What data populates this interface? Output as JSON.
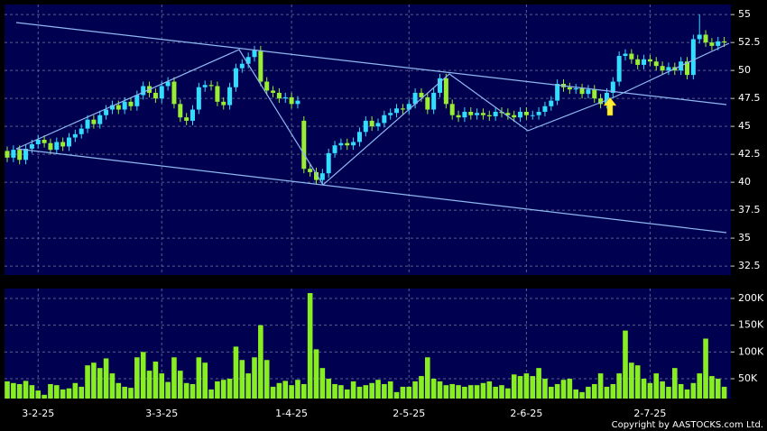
{
  "chart_data": [
    {
      "type": "candlestick",
      "categories": [
        null,
        null,
        null,
        null,
        null,
        "3-2-25",
        null,
        null,
        null,
        null,
        null,
        null,
        null,
        null,
        null,
        null,
        null,
        null,
        null,
        null,
        null,
        null,
        null,
        null,
        null,
        "3-3-25",
        null,
        null,
        null,
        null,
        null,
        null,
        null,
        null,
        null,
        null,
        null,
        null,
        null,
        null,
        null,
        null,
        null,
        null,
        null,
        null,
        "1-4-25",
        null,
        null,
        null,
        null,
        null,
        null,
        null,
        null,
        null,
        null,
        null,
        null,
        null,
        null,
        null,
        null,
        null,
        null,
        "2-5-25",
        null,
        null,
        null,
        null,
        null,
        null,
        null,
        null,
        null,
        null,
        null,
        null,
        null,
        null,
        null,
        null,
        null,
        null,
        "2-6-25",
        null,
        null,
        null,
        null,
        null,
        null,
        null,
        null,
        null,
        null,
        null,
        null,
        null,
        null,
        null,
        null,
        null,
        null,
        null,
        "2-7-25",
        null,
        null,
        null,
        null,
        null,
        null,
        null,
        null,
        null,
        null,
        null,
        null
      ],
      "open": [
        42.8,
        42.2,
        42.9,
        42.0,
        43.0,
        43.4,
        43.8,
        43.5,
        42.9,
        43.6,
        43.2,
        44.0,
        44.3,
        44.8,
        45.6,
        45.2,
        46.0,
        46.5,
        46.9,
        46.5,
        47.2,
        46.8,
        47.8,
        48.6,
        48.0,
        47.5,
        48.6,
        49.0,
        47.0,
        45.8,
        45.5,
        46.5,
        48.5,
        48.7,
        48.6,
        47.2,
        46.9,
        48.5,
        50.2,
        50.6,
        51.2,
        51.8,
        49.0,
        48.2,
        48.0,
        47.5,
        47.6,
        47.0,
        45.5,
        41.2,
        40.9,
        40.2,
        40.8,
        42.6,
        43.3,
        43.5,
        43.3,
        43.6,
        44.5,
        45.5,
        45.0,
        45.3,
        46.0,
        46.2,
        46.6,
        46.5,
        47.0,
        48.0,
        47.6,
        46.5,
        48.0,
        49.3,
        47.0,
        46.0,
        45.8,
        46.3,
        46.0,
        46.2,
        46.0,
        45.9,
        46.3,
        46.2,
        46.0,
        45.8,
        46.3,
        46.0,
        46.0,
        46.3,
        46.8,
        47.3,
        48.8,
        48.5,
        48.3,
        48.4,
        47.9,
        48.3,
        47.5,
        47.0,
        48.0,
        49.0,
        51.3,
        51.5,
        51.0,
        50.5,
        51.0,
        50.8,
        50.4,
        50.0,
        50.3,
        50.0,
        50.8,
        49.6,
        52.8,
        53.2,
        52.5,
        52.2,
        52.6
      ],
      "high": [
        43.2,
        43.3,
        43.3,
        43.4,
        43.8,
        44.2,
        44.2,
        43.9,
        44.0,
        44.0,
        44.4,
        44.7,
        45.2,
        46.0,
        46.0,
        46.4,
        46.9,
        47.3,
        47.3,
        47.6,
        47.6,
        48.2,
        49.0,
        49.0,
        48.4,
        49.0,
        49.4,
        49.4,
        47.4,
        46.2,
        46.9,
        48.9,
        49.1,
        49.1,
        49.0,
        47.6,
        48.9,
        50.6,
        51.0,
        51.6,
        52.2,
        52.2,
        49.4,
        48.6,
        48.4,
        48.0,
        48.0,
        47.7,
        45.9,
        41.6,
        41.3,
        41.2,
        43.0,
        43.7,
        43.9,
        43.9,
        44.0,
        44.9,
        45.9,
        45.9,
        45.7,
        46.4,
        46.6,
        47.0,
        47.0,
        47.4,
        48.4,
        48.4,
        48.0,
        48.4,
        49.7,
        49.7,
        47.4,
        46.4,
        46.7,
        46.7,
        46.6,
        46.6,
        46.4,
        46.7,
        46.7,
        46.6,
        46.4,
        46.7,
        46.7,
        46.4,
        46.7,
        47.2,
        47.7,
        49.2,
        49.2,
        48.9,
        48.8,
        48.8,
        48.7,
        48.7,
        47.9,
        48.4,
        49.4,
        51.7,
        51.9,
        51.9,
        51.4,
        51.4,
        51.4,
        51.2,
        50.8,
        50.7,
        50.7,
        51.2,
        51.2,
        53.2,
        55.0,
        53.6,
        52.9,
        53.0,
        53.0
      ],
      "low": [
        41.8,
        41.8,
        41.6,
        41.6,
        42.6,
        43.0,
        43.1,
        42.5,
        42.5,
        42.8,
        42.8,
        43.6,
        43.9,
        44.4,
        44.8,
        44.8,
        45.6,
        46.1,
        46.1,
        46.1,
        46.4,
        46.4,
        47.4,
        47.6,
        47.1,
        47.1,
        48.2,
        46.6,
        45.4,
        45.1,
        45.1,
        46.1,
        48.1,
        48.2,
        46.8,
        46.5,
        46.5,
        48.1,
        49.8,
        50.2,
        50.8,
        48.6,
        47.8,
        47.6,
        47.1,
        47.1,
        46.6,
        46.6,
        40.8,
        40.5,
        39.8,
        39.8,
        40.4,
        42.2,
        42.9,
        42.9,
        42.9,
        43.2,
        44.1,
        44.6,
        44.6,
        44.9,
        45.6,
        45.8,
        46.1,
        46.1,
        46.6,
        47.2,
        46.1,
        46.1,
        47.6,
        46.6,
        45.6,
        45.4,
        45.4,
        45.6,
        45.6,
        45.6,
        45.5,
        45.5,
        45.8,
        45.6,
        45.4,
        45.4,
        45.6,
        45.6,
        45.6,
        45.9,
        46.4,
        46.9,
        48.1,
        47.9,
        47.9,
        47.5,
        47.5,
        47.1,
        46.6,
        46.6,
        47.6,
        48.6,
        50.9,
        50.6,
        50.1,
        50.1,
        50.4,
        50.0,
        49.6,
        49.6,
        49.6,
        49.6,
        49.2,
        49.2,
        52.4,
        52.1,
        51.8,
        51.8,
        52.1
      ],
      "close": [
        42.2,
        42.9,
        42.0,
        43.0,
        43.4,
        43.8,
        43.5,
        42.9,
        43.6,
        43.2,
        44.0,
        44.3,
        44.8,
        45.6,
        45.2,
        46.0,
        46.5,
        46.9,
        46.5,
        47.2,
        46.8,
        47.8,
        48.6,
        48.0,
        47.5,
        48.6,
        49.0,
        47.0,
        45.8,
        45.5,
        46.5,
        48.5,
        48.7,
        48.6,
        47.2,
        46.9,
        48.5,
        50.2,
        50.6,
        51.2,
        51.8,
        49.0,
        48.2,
        48.0,
        47.5,
        47.6,
        47.0,
        47.3,
        41.2,
        40.9,
        40.2,
        40.8,
        42.6,
        43.3,
        43.5,
        43.3,
        43.6,
        44.5,
        45.5,
        45.0,
        45.3,
        46.0,
        46.2,
        46.6,
        46.5,
        47.0,
        48.0,
        47.6,
        46.5,
        48.0,
        49.3,
        47.0,
        46.0,
        45.8,
        46.3,
        46.0,
        46.2,
        46.0,
        45.9,
        46.3,
        46.2,
        46.0,
        45.8,
        46.3,
        46.0,
        46.0,
        46.3,
        46.8,
        47.3,
        48.8,
        48.5,
        48.3,
        48.4,
        47.9,
        48.3,
        47.5,
        47.0,
        48.0,
        49.0,
        51.3,
        51.5,
        51.0,
        50.5,
        51.0,
        50.8,
        50.4,
        50.0,
        50.3,
        50.0,
        50.8,
        49.6,
        52.8,
        53.2,
        52.5,
        52.2,
        52.6,
        52.5
      ],
      "up_color": "#33ddff",
      "down_color": "#99ee33",
      "ylim": [
        31.7,
        55.9
      ],
      "yticks": [
        32.5,
        35,
        37.5,
        40,
        42.5,
        45,
        47.5,
        50,
        52.5,
        55
      ],
      "grid": true
    },
    {
      "type": "bar",
      "values": [
        45000,
        42000,
        40000,
        46000,
        38000,
        28000,
        20000,
        40000,
        38000,
        30000,
        32000,
        42000,
        35000,
        75000,
        80000,
        70000,
        88000,
        60000,
        42000,
        35000,
        33000,
        90000,
        100000,
        65000,
        82000,
        60000,
        44000,
        90000,
        65000,
        42000,
        40000,
        90000,
        80000,
        30000,
        45000,
        48000,
        50000,
        110000,
        85000,
        60000,
        90000,
        150000,
        85000,
        35000,
        42000,
        46000,
        38000,
        48000,
        40000,
        210000,
        105000,
        70000,
        50000,
        40000,
        38000,
        30000,
        45000,
        35000,
        38000,
        42000,
        48000,
        40000,
        45000,
        25000,
        35000,
        35000,
        45000,
        55000,
        90000,
        50000,
        45000,
        38000,
        40000,
        38000,
        35000,
        38000,
        38000,
        42000,
        45000,
        35000,
        38000,
        32000,
        58000,
        55000,
        60000,
        55000,
        70000,
        50000,
        35000,
        40000,
        48000,
        50000,
        30000,
        25000,
        35000,
        40000,
        60000,
        35000,
        40000,
        60000,
        140000,
        80000,
        75000,
        50000,
        42000,
        60000,
        45000,
        35000,
        70000,
        40000,
        30000,
        42000,
        60000,
        125000,
        55000,
        50000,
        35000
      ],
      "color": "#88ee22",
      "ylim": [
        13000,
        218500
      ],
      "yticks": [
        {
          "value": 50000,
          "label": "50K"
        },
        {
          "value": 100000,
          "label": "100K"
        },
        {
          "value": 150000,
          "label": "150K"
        },
        {
          "value": 200000,
          "label": "200K"
        }
      ],
      "grid": true,
      "credit": "Copyright by AASTOCKS.com Ltd."
    }
  ]
}
